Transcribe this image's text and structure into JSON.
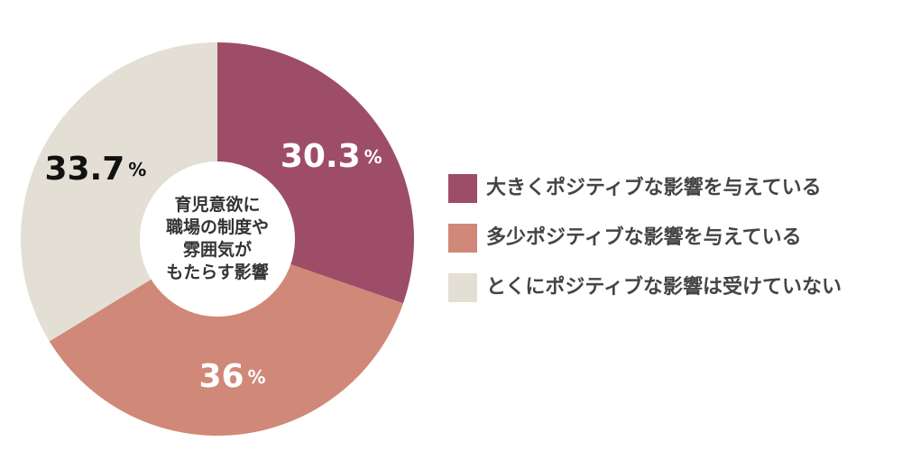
{
  "chart_data": {
    "type": "pie",
    "categories": [
      "大きくポジティブな影響を与えている",
      "多少ポジティブな影響を与えている",
      "とくにポジティブな影響は受けていない"
    ],
    "values": [
      30.3,
      36,
      33.7
    ],
    "value_labels": [
      "30.3%",
      "36%",
      "33.7%"
    ],
    "colors": [
      "#9e4d68",
      "#d08878",
      "#e3dfd4"
    ],
    "label_colors": [
      "#ffffff",
      "#ffffff",
      "#111111"
    ],
    "center_text": [
      "育児意欲に",
      "職場の制度や",
      "雰囲気が",
      "もたらす影響"
    ],
    "legend": "right"
  }
}
